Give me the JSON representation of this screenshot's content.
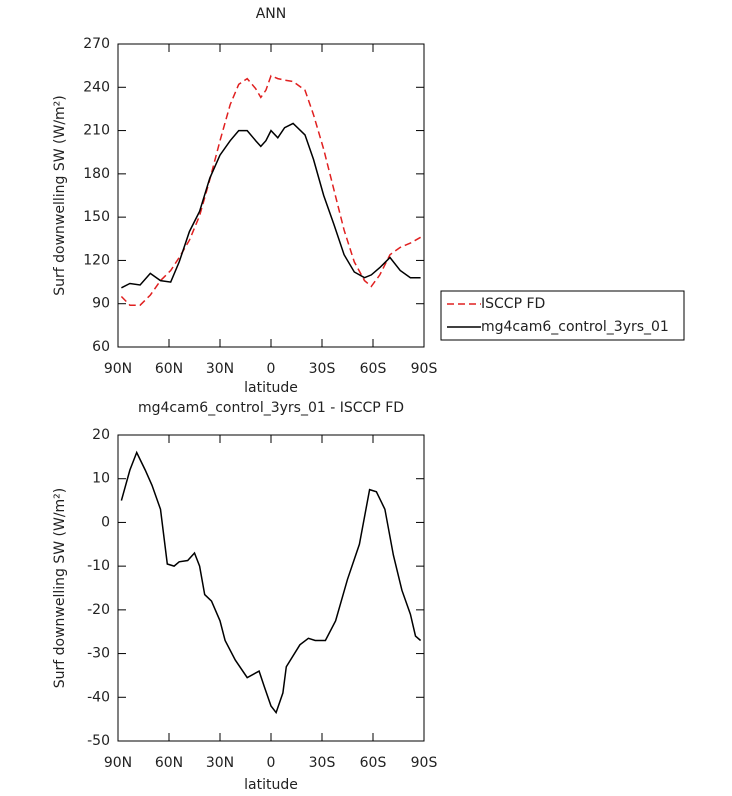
{
  "chart_data": [
    {
      "type": "line",
      "title": "ANN",
      "xlabel": "latitude",
      "ylabel": "Surf downwelling SW (W/m²)",
      "x": [
        88,
        83,
        77,
        71,
        65,
        59,
        54,
        48,
        42,
        36,
        30,
        24,
        19,
        14,
        9,
        6,
        3,
        0,
        -4,
        -8,
        -13,
        -20,
        -25,
        -31,
        -37,
        -43,
        -49,
        -55,
        -59,
        -64,
        -70,
        -76,
        -82,
        -88
      ],
      "series": [
        {
          "name": "ISCCP FD",
          "color": "#e02020",
          "line_style": "dashed",
          "values": [
            95,
            89,
            89,
            96,
            106,
            113,
            122,
            134,
            151,
            176,
            203,
            228,
            242,
            246,
            239,
            233,
            238,
            248,
            246,
            245,
            244,
            238,
            221,
            197,
            169,
            141,
            119,
            106,
            102,
            110,
            124,
            129,
            132,
            136
          ]
        },
        {
          "name": "mg4cam6_control_3yrs_01",
          "color": "#000000",
          "line_style": "solid",
          "values": [
            101,
            104,
            103,
            111,
            106,
            105,
            119,
            140,
            154,
            177,
            193,
            203,
            210,
            210,
            203,
            199,
            203,
            210,
            205,
            212,
            215,
            207,
            190,
            165,
            145,
            124,
            112,
            108,
            110,
            115,
            122,
            113,
            108,
            108
          ]
        }
      ],
      "xlim": [
        90,
        -90
      ],
      "xticks": [
        {
          "value": 90,
          "label": "90N"
        },
        {
          "value": 60,
          "label": "60N"
        },
        {
          "value": 30,
          "label": "30N"
        },
        0,
        {
          "value": -30,
          "label": "30S"
        },
        {
          "value": -60,
          "label": "60S"
        },
        {
          "value": -90,
          "label": "90S"
        }
      ],
      "ylim": [
        60,
        270
      ],
      "yticks": [
        60,
        90,
        120,
        150,
        180,
        210,
        240,
        270
      ],
      "legend": "outside right"
    },
    {
      "type": "line",
      "title": "mg4cam6_control_3yrs_01 - ISCCP FD",
      "xlabel": "latitude",
      "ylabel": "Surf downwelling SW (W/m²)",
      "x": [
        88,
        83,
        79,
        74,
        70,
        65,
        61,
        57,
        54,
        49,
        45,
        42,
        39,
        35,
        30,
        27,
        21,
        14,
        7,
        4,
        0,
        -3,
        -7,
        -9,
        -17,
        -22,
        -26,
        -32,
        -38,
        -45,
        -52,
        -58,
        -62,
        -67,
        -72,
        -77,
        -82,
        -85,
        -88
      ],
      "values": [
        5,
        12,
        16,
        12,
        8.5,
        3,
        -9.5,
        -10,
        -9,
        -8.7,
        -7,
        -10,
        -16.5,
        -18,
        -22.5,
        -27,
        -31.5,
        -35.5,
        -34,
        -37.5,
        -42,
        -43.5,
        -39,
        -33,
        -28,
        -26.5,
        -27,
        -27,
        -22.5,
        -13,
        -5,
        7.5,
        7,
        3,
        -7.5,
        -15.5,
        -21,
        -26,
        -27
      ],
      "color": "#000000",
      "xlim": [
        90,
        -90
      ],
      "xticks": [
        {
          "value": 90,
          "label": "90N"
        },
        {
          "value": 60,
          "label": "60N"
        },
        {
          "value": 30,
          "label": "30N"
        },
        0,
        {
          "value": -30,
          "label": "30S"
        },
        {
          "value": -60,
          "label": "60S"
        },
        {
          "value": -90,
          "label": "90S"
        }
      ],
      "ylim": [
        -50,
        20
      ],
      "yticks": [
        -50,
        -40,
        -30,
        -20,
        -10,
        0,
        10,
        20
      ]
    }
  ]
}
